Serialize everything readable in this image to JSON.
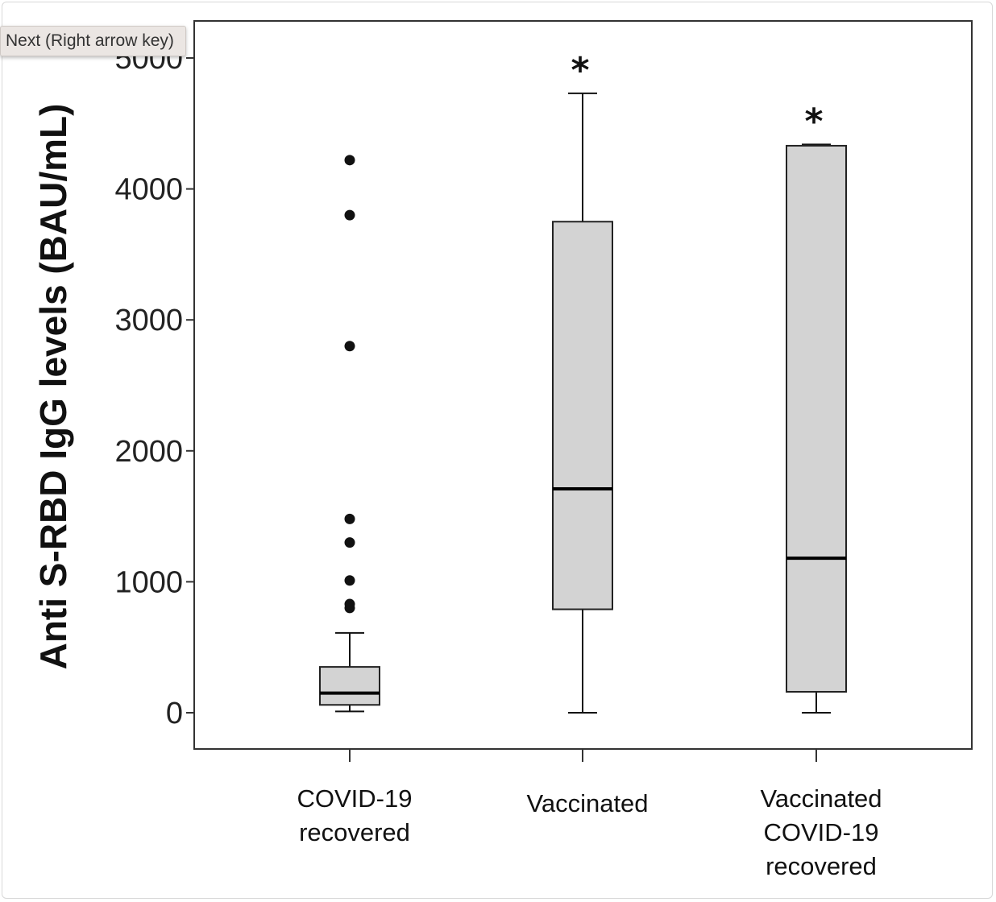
{
  "tooltip": {
    "text": "Next (Right arrow key)"
  },
  "chart_data": {
    "type": "boxplot",
    "title": "",
    "xlabel": "",
    "ylabel": "Anti S-RBD IgG levels (BAU/mL)",
    "ylim": [
      -280,
      5330
    ],
    "yticks": [
      0,
      1000,
      2000,
      3000,
      4000,
      5000
    ],
    "ytick_labels": [
      "0",
      "1000",
      "2000",
      "3000",
      "4000",
      "5000"
    ],
    "grid": false,
    "categories": [
      {
        "lines": [
          "COVID-19",
          "recovered"
        ]
      },
      {
        "lines": [
          "Vaccinated"
        ]
      },
      {
        "lines": [
          "Vaccinated",
          "COVID-19",
          "recovered"
        ]
      }
    ],
    "boxes": [
      {
        "whisker_low": 10,
        "q1": 60,
        "median": 150,
        "q3": 350,
        "whisker_high": 610,
        "outliers": [
          800,
          830,
          1010,
          1300,
          1480,
          2800,
          3800,
          4220
        ],
        "annotation": ""
      },
      {
        "whisker_low": 0,
        "q1": 790,
        "median": 1710,
        "q3": 3750,
        "whisker_high": 4730,
        "outliers": [],
        "annotation": "*"
      },
      {
        "whisker_low": 0,
        "q1": 160,
        "median": 1180,
        "q3": 4330,
        "whisker_high": 4340,
        "outliers": [],
        "annotation": "*"
      }
    ]
  }
}
